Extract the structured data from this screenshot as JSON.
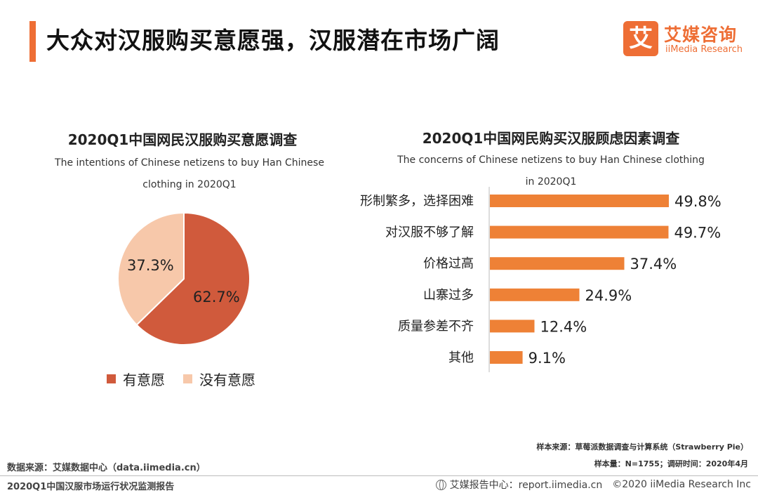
{
  "header": {
    "title": "大众对汉服购买意愿强，汉服潜在市场广阔",
    "logo_badge": "艾",
    "logo_cn": "艾媒咨询",
    "logo_en": "iiMedia Research",
    "accent_color": "#ee6e35"
  },
  "pie_panel": {
    "title": "2020Q1中国网民汉服购买意愿调查",
    "subtitle_line1": "The intentions of  Chinese netizens to buy Han Chinese",
    "subtitle_line2": "clothing in 2020Q1"
  },
  "bar_panel": {
    "title": "2020Q1中国网民购买汉服顾虑因素调查",
    "subtitle_line1": "The concerns of Chinese netizens to buy Han Chinese clothing",
    "subtitle_line2": "in 2020Q1"
  },
  "chart_data": [
    {
      "type": "pie",
      "title": "2020Q1中国网民汉服购买意愿调查",
      "slices": [
        {
          "label": "有意愿",
          "value": 62.7,
          "display": "62.7%",
          "color": "#d05a3c"
        },
        {
          "label": "没有意愿",
          "value": 37.3,
          "display": "37.3%",
          "color": "#f7c8aa"
        }
      ],
      "legend_position": "bottom"
    },
    {
      "type": "bar",
      "orientation": "horizontal",
      "title": "2020Q1中国网民购买汉服顾虑因素调查",
      "unit": "%",
      "categories": [
        "形制繁多，选择困难",
        "对汉服不够了解",
        "价格过高",
        "山寨过多",
        "质量参差不齐",
        "其他"
      ],
      "values": [
        49.8,
        49.7,
        37.4,
        24.9,
        12.4,
        9.1
      ],
      "display": [
        "49.8%",
        "49.7%",
        "37.4%",
        "24.9%",
        "12.4%",
        "9.1%"
      ],
      "xlim": [
        0,
        50
      ],
      "color": "#ee8136"
    }
  ],
  "footer": {
    "sample_source": "样本来源：草莓派数据调查与计算系统（Strawberry Pie）",
    "sample_size": "样本量：N=1755；调研时间：2020年4月",
    "data_source": "数据来源：艾媒数据中心（data.iimedia.cn）",
    "report_name": "2020Q1中国汉服市场运行状况监测报告",
    "report_center": "艾媒报告中心：report.iimedia.cn",
    "copyright": "©2020  iiMedia Research  Inc"
  }
}
